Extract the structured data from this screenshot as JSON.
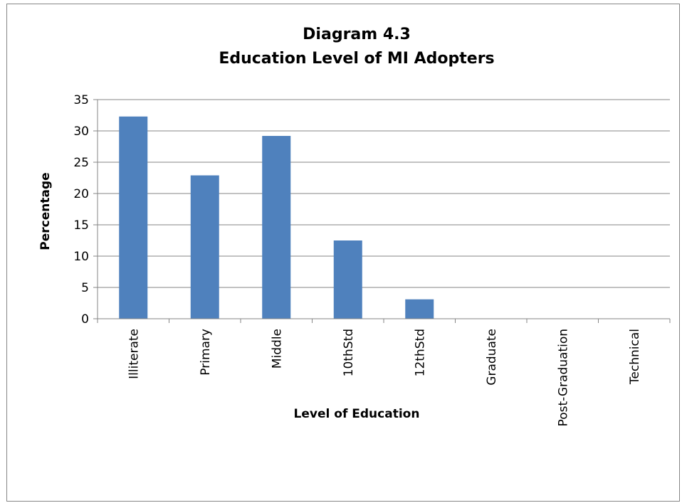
{
  "chart_data": {
    "type": "bar",
    "title_line1": "Diagram 4.3",
    "title_line2": "Education Level of MI Adopters",
    "xlabel": "Level of Education",
    "ylabel": "Percentage",
    "categories": [
      "Illiterate",
      "Primary",
      "Middle",
      "10thStd",
      "12thStd",
      "Graduate",
      "Post-Graduation",
      "Technical"
    ],
    "values": [
      32.3,
      22.9,
      29.2,
      12.5,
      3.1,
      0,
      0,
      0
    ],
    "ylim": [
      0,
      35
    ],
    "yticks": [
      0,
      5,
      10,
      15,
      20,
      25,
      30,
      35
    ],
    "grid": true,
    "legend": "none",
    "bar_color": "#4F81BD",
    "grid_color": "#868686"
  }
}
